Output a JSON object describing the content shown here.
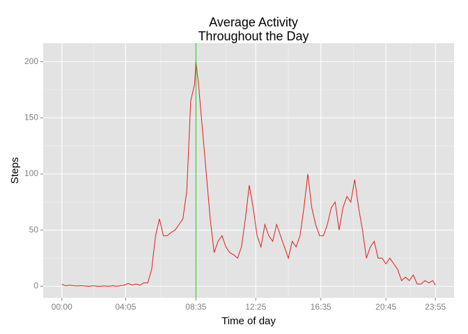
{
  "chart_data": {
    "type": "line",
    "title": [
      "Average Activity",
      "Throughout the Day"
    ],
    "x_label": "Time of day",
    "y_label": "Steps",
    "x": [
      0,
      15,
      30,
      45,
      60,
      75,
      90,
      105,
      120,
      135,
      150,
      165,
      180,
      195,
      210,
      225,
      240,
      255,
      270,
      285,
      300,
      315,
      330,
      345,
      360,
      375,
      390,
      405,
      420,
      435,
      450,
      465,
      480,
      495,
      510,
      515,
      525,
      540,
      555,
      570,
      585,
      600,
      615,
      630,
      645,
      660,
      675,
      690,
      705,
      720,
      735,
      750,
      765,
      780,
      795,
      810,
      825,
      840,
      855,
      870,
      885,
      900,
      915,
      930,
      945,
      960,
      975,
      990,
      1005,
      1020,
      1035,
      1050,
      1065,
      1080,
      1095,
      1110,
      1125,
      1140,
      1155,
      1170,
      1185,
      1200,
      1215,
      1230,
      1245,
      1260,
      1275,
      1290,
      1305,
      1320,
      1335,
      1350,
      1365,
      1380,
      1395,
      1410,
      1425,
      1435
    ],
    "series": [
      {
        "name": "Steps",
        "color": "#e41a1c",
        "values": [
          1.7,
          0.3,
          1,
          0.5,
          0.3,
          0.5,
          0.2,
          0,
          0.5,
          0,
          0,
          0.3,
          0,
          0.5,
          0,
          0.5,
          1,
          2.5,
          1,
          2,
          1,
          3,
          3,
          15,
          45,
          60,
          45,
          45,
          48,
          50,
          55,
          60,
          85,
          165,
          180,
          200,
          180,
          140,
          100,
          60,
          30,
          40,
          45,
          35,
          30,
          28,
          25,
          35,
          60,
          90,
          70,
          45,
          35,
          55,
          45,
          40,
          55,
          45,
          35,
          25,
          40,
          35,
          45,
          70,
          100,
          70,
          55,
          45,
          45,
          55,
          70,
          75,
          50,
          70,
          80,
          75,
          95,
          70,
          50,
          25,
          35,
          40,
          25,
          25,
          20,
          25,
          20,
          15,
          5,
          8,
          5,
          10,
          2,
          2,
          5,
          3,
          5,
          1
        ]
      }
    ],
    "vline": 515,
    "vline_color": "#00cc00",
    "xlim": [
      -71.75,
      1506.75
    ],
    "ylim": [
      -10.3,
      216.5
    ],
    "xticks": [
      {
        "value": 0,
        "label": "00:00"
      },
      {
        "value": 245,
        "label": "04:05"
      },
      {
        "value": 515,
        "label": "08:35"
      },
      {
        "value": 745,
        "label": "12:25"
      },
      {
        "value": 995,
        "label": "16:35"
      },
      {
        "value": 1245,
        "label": "20:45"
      },
      {
        "value": 1435,
        "label": "23:55"
      }
    ],
    "yticks": [
      0,
      50,
      100,
      150,
      200
    ],
    "grid": true
  }
}
